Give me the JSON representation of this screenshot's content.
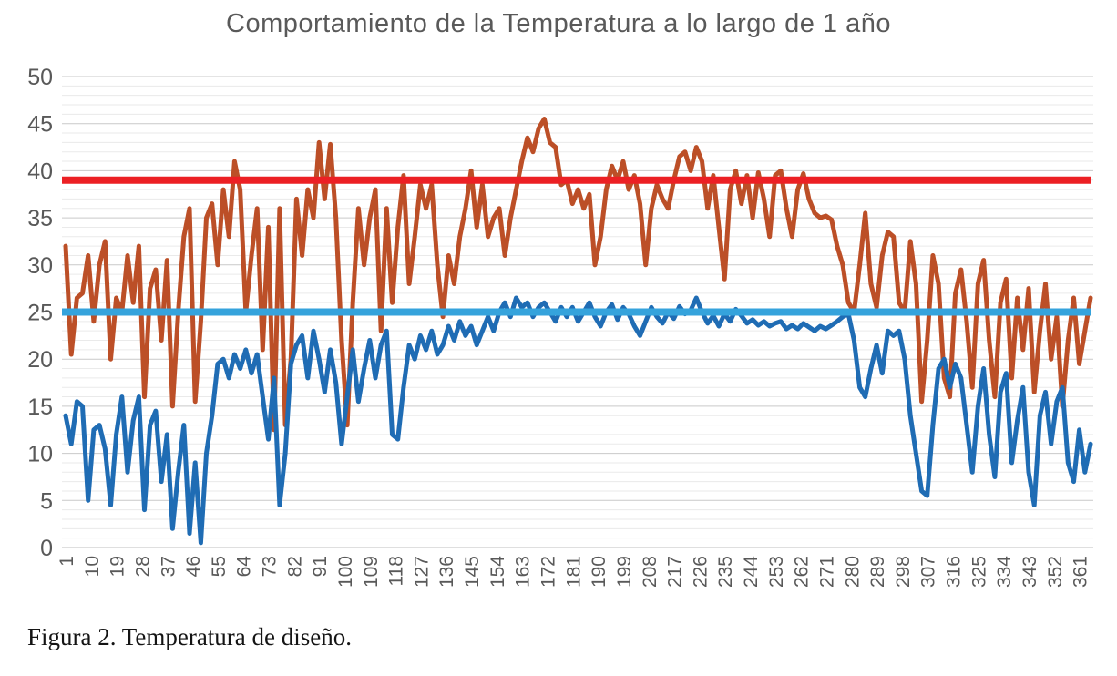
{
  "figure": {
    "caption": "Figura 2. Temperatura de diseño."
  },
  "chart_data": {
    "type": "line",
    "title": "Comportamiento de la Temperatura a lo largo de 1 año",
    "xlabel": "",
    "ylabel": "",
    "background": "#FFFFFF",
    "text_color": "#595959",
    "grid": {
      "minor_color": "#EAEAEA",
      "major_color": "#C9C9C9",
      "axis_color": "#BFBFBF",
      "minor_step": 1
    },
    "x_axis": {
      "min": 1,
      "max": 365,
      "tick_step": 9,
      "ticks": [
        1,
        10,
        19,
        28,
        37,
        46,
        55,
        64,
        73,
        82,
        91,
        100,
        109,
        118,
        127,
        136,
        145,
        154,
        163,
        172,
        181,
        190,
        199,
        208,
        217,
        226,
        235,
        244,
        253,
        262,
        271,
        280,
        289,
        298,
        307,
        316,
        325,
        334,
        343,
        352,
        361
      ]
    },
    "y_axis": {
      "min": 0,
      "max": 50,
      "tick_step": 5,
      "ticks": [
        0,
        5,
        10,
        15,
        20,
        25,
        30,
        35,
        40,
        45,
        50
      ]
    },
    "reference_lines": [
      {
        "id": "red-reference-line",
        "value": 39,
        "color": "#EC2024",
        "width": 8
      },
      {
        "id": "skyblue-reference-line",
        "value": 25,
        "color": "#35A3DC",
        "width": 8
      }
    ],
    "series": [
      {
        "id": "orange-temperature-series",
        "color": "#BC4F27",
        "width": 5,
        "x_start": 1,
        "x_step": 2,
        "values": [
          32,
          20.5,
          26.5,
          27,
          31,
          24,
          30,
          32.5,
          20,
          26.5,
          25,
          31,
          26,
          32,
          16,
          27.5,
          29.5,
          22,
          30.5,
          15,
          25,
          33,
          36,
          15.5,
          24,
          35,
          36.5,
          30,
          38,
          33,
          41,
          38,
          25,
          31,
          36,
          21,
          34,
          12.5,
          36,
          13,
          20,
          37,
          31,
          38,
          35,
          43,
          37,
          42.8,
          35,
          22,
          13,
          26,
          36,
          30,
          35,
          38,
          23,
          36,
          26,
          34,
          39.5,
          28,
          33,
          38.5,
          36,
          38.5,
          30,
          24.5,
          31,
          28,
          33,
          36,
          40,
          34,
          38.5,
          33,
          35,
          36,
          31,
          35,
          38,
          41,
          43.5,
          42,
          44.5,
          45.5,
          43,
          42.5,
          38.5,
          39,
          36.5,
          38,
          36,
          37.5,
          30,
          33,
          38,
          40.5,
          39,
          41,
          38,
          39.5,
          36.5,
          30,
          36,
          38.5,
          37,
          36,
          39,
          41.5,
          42,
          40,
          42.5,
          41,
          36,
          39.5,
          34,
          28.5,
          38,
          40,
          36.5,
          39.5,
          35,
          39.8,
          37,
          33,
          39.5,
          40,
          36,
          33,
          38,
          39.7,
          37,
          35.5,
          35,
          35.2,
          34.8,
          32,
          30,
          26,
          25,
          30,
          35.5,
          28,
          25.5,
          31,
          33.5,
          33,
          26,
          25,
          32.5,
          28,
          15.5,
          22,
          31,
          28,
          18,
          16,
          27,
          29.5,
          24,
          17,
          28,
          30.5,
          22,
          16,
          26,
          28.5,
          18,
          26.5,
          21,
          27.5,
          16.5,
          23,
          28,
          20,
          24.5,
          15,
          22,
          26.5,
          19.5,
          23,
          26.5
        ]
      },
      {
        "id": "blue-temperature-series",
        "color": "#1F6CB4",
        "width": 5,
        "x_start": 1,
        "x_step": 2,
        "values": [
          14,
          11,
          15.5,
          15,
          5,
          12.5,
          13,
          10.5,
          4.5,
          12,
          16,
          8,
          13.5,
          16,
          4,
          13,
          14.5,
          7,
          12,
          2,
          8,
          13,
          1.5,
          9,
          0.5,
          10,
          14,
          19.5,
          20,
          18,
          20.5,
          19,
          21,
          18.5,
          20.5,
          16,
          11.5,
          18,
          4.5,
          10,
          19.5,
          21.5,
          22.5,
          18,
          23,
          20,
          16.5,
          21,
          17.5,
          11,
          16,
          21,
          15.5,
          19,
          22,
          18,
          21.5,
          23,
          12,
          11.5,
          17,
          21.5,
          20,
          22.5,
          21,
          23,
          20.5,
          21.5,
          23.5,
          22,
          24,
          22.5,
          23.5,
          21.5,
          23,
          24.5,
          23,
          25,
          26,
          24.5,
          26.5,
          25.5,
          26,
          24.5,
          25.5,
          26,
          25,
          24,
          25.5,
          24.5,
          25.5,
          24,
          25,
          26,
          24.5,
          23.5,
          25,
          25.8,
          24.2,
          25.5,
          24.8,
          23.5,
          22.5,
          24,
          25.5,
          24.5,
          23.8,
          25,
          24.3,
          25.6,
          24.8,
          25.2,
          26.5,
          25,
          23.8,
          24.6,
          23.5,
          24.8,
          24,
          25.3,
          24.6,
          23.8,
          24.2,
          23.6,
          24,
          23.5,
          23.8,
          24,
          23.2,
          23.6,
          23.2,
          23.8,
          23.4,
          23,
          23.5,
          23.2,
          23.6,
          24,
          24.5,
          24.8,
          22,
          17,
          16,
          19,
          21.5,
          18.5,
          23,
          22.5,
          23,
          20,
          14,
          10,
          6,
          5.5,
          13,
          19,
          20,
          17,
          19.5,
          18,
          13,
          8,
          15,
          19,
          12,
          7.5,
          16.5,
          18.5,
          9,
          13.5,
          17,
          8,
          4.5,
          14,
          16.5,
          11,
          15.5,
          17,
          9,
          7,
          12.5,
          8,
          11
        ]
      }
    ]
  }
}
